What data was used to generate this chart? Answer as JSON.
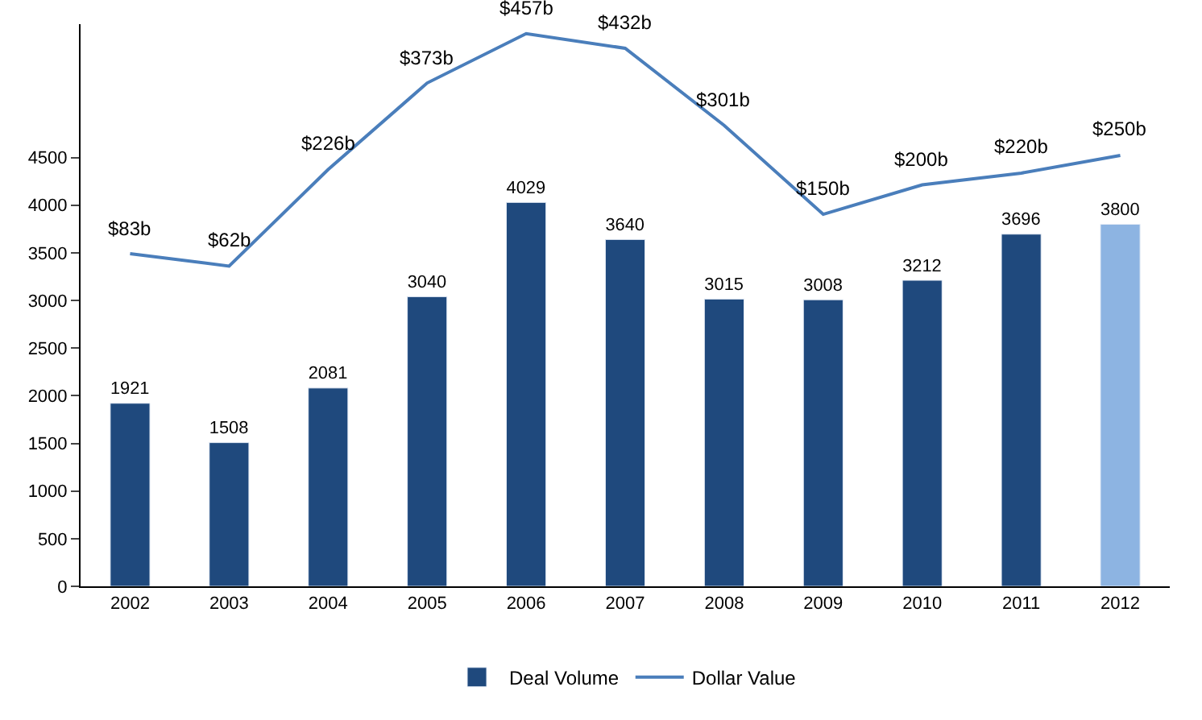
{
  "chart_data": {
    "type": "bar",
    "categories": [
      "2002",
      "2003",
      "2004",
      "2005",
      "2006",
      "2007",
      "2008",
      "2009",
      "2010",
      "2011",
      "2012"
    ],
    "series": [
      {
        "name": "Deal Volume",
        "colors": [
          "#1f497d",
          "#1f497d",
          "#1f497d",
          "#1f497d",
          "#1f497d",
          "#1f497d",
          "#1f497d",
          "#1f497d",
          "#1f497d",
          "#1f497d",
          "#8db4e2"
        ],
        "values": [
          1921,
          1508,
          2081,
          3040,
          4029,
          3640,
          3015,
          3008,
          3212,
          3696,
          3800
        ],
        "data_labels": true
      },
      {
        "name": "Dollar Value",
        "type": "line",
        "axis": "y2",
        "color": "#4a7ebb",
        "values": [
          83,
          62,
          226,
          373,
          457,
          432,
          301,
          150,
          200,
          220,
          250
        ],
        "value_labels": [
          "$83b",
          "$62b",
          "$226b",
          "$373b",
          "$457b",
          "$432b",
          "$301b",
          "$150b",
          "$200b",
          "$220b",
          "$250b"
        ]
      }
    ],
    "ylim": [
      0,
      5900
    ],
    "yticks": [
      0,
      500,
      1000,
      1500,
      2000,
      2500,
      3000,
      3500,
      4000,
      4500
    ],
    "y2lim": [
      -482,
      473
    ],
    "grid": false,
    "legend": "bottom",
    "marker": "none",
    "line_style": "solid"
  }
}
